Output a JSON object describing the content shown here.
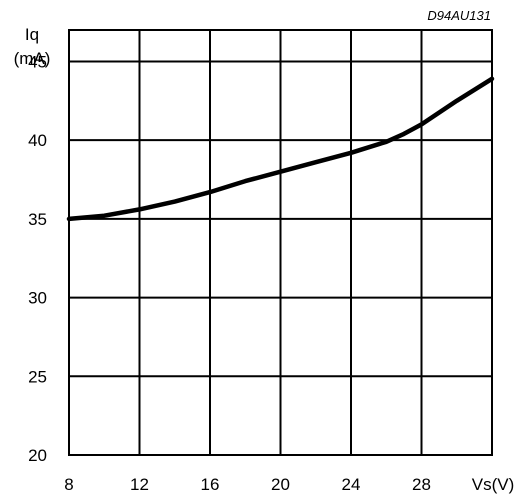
{
  "chart_data": {
    "type": "line",
    "title": "",
    "figure_code": "D94AU131",
    "ylabel_line1": "Iq",
    "ylabel_line2": "(mA)",
    "xlabel": "Vs(V)",
    "xlim": [
      8,
      32
    ],
    "ylim": [
      20,
      47
    ],
    "x_ticks": [
      8,
      12,
      16,
      20,
      24,
      28
    ],
    "y_ticks": [
      20,
      25,
      30,
      35,
      40,
      45
    ],
    "grid": true,
    "series": [
      {
        "x": [
          8,
          10,
          12,
          14,
          16,
          18,
          20,
          22,
          24,
          26,
          27,
          28,
          30,
          32
        ],
        "y": [
          35.0,
          35.2,
          35.6,
          36.1,
          36.7,
          37.4,
          38.0,
          38.6,
          39.2,
          39.9,
          40.4,
          41.0,
          42.5,
          43.9
        ]
      }
    ],
    "colors": {
      "line": "#000000",
      "grid": "#000000",
      "background": "#ffffff"
    }
  }
}
